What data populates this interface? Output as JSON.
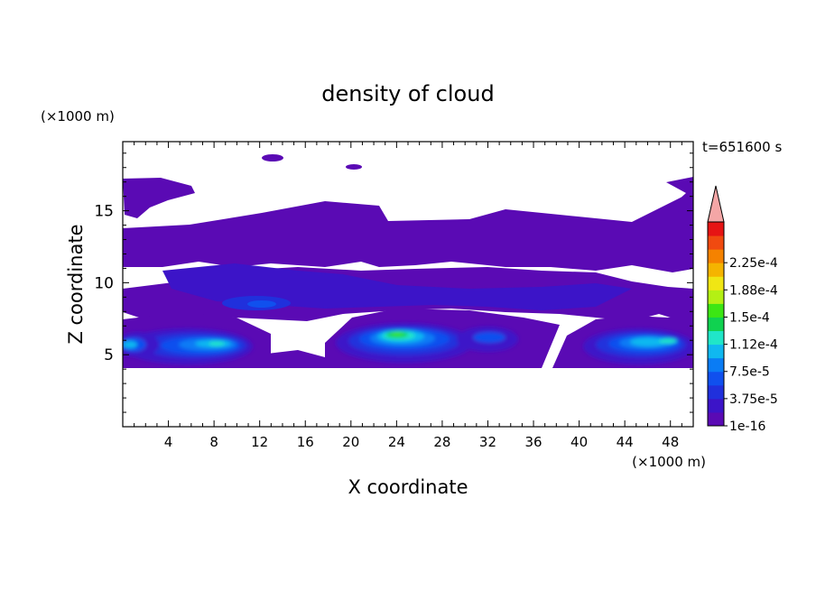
{
  "chart_data": {
    "type": "heatmap",
    "title": "density of cloud",
    "xlabel": "X coordinate",
    "ylabel": "Z coordinate",
    "x_unit": "(×1000 m)",
    "y_unit": "(×1000 m)",
    "time_label": "t=651600 s",
    "xlim": [
      0,
      50
    ],
    "ylim": [
      0,
      19.8
    ],
    "x_ticks": [
      4,
      8,
      12,
      16,
      20,
      24,
      28,
      32,
      36,
      40,
      44,
      48
    ],
    "y_ticks": [
      5,
      10,
      15
    ],
    "colorbar": {
      "labels": [
        "1e-16",
        "3.75e-5",
        "7.5e-5",
        "1.12e-4",
        "1.5e-4",
        "1.88e-4",
        "2.25e-4"
      ],
      "colors": [
        "#5a0ab4",
        "#3c14c8",
        "#2030dc",
        "#1050ee",
        "#0a7cf5",
        "#10b8f0",
        "#20e6c8",
        "#10d250",
        "#3ce614",
        "#b4f014",
        "#f0e614",
        "#f5b400",
        "#f58200",
        "#f04a10",
        "#e61414"
      ],
      "extend_color": "#f4a6a6"
    },
    "regions": [
      {
        "name": "upper-cloud-layer",
        "x": [
          0,
          50
        ],
        "z": [
          10,
          15.5
        ],
        "level": 1
      },
      {
        "name": "top-cloud-patch-left",
        "x": [
          0,
          6.5
        ],
        "z": [
          15,
          17.3
        ],
        "level": 0
      },
      {
        "name": "top-cloud-patch-right",
        "x": [
          45,
          50
        ],
        "z": [
          14.5,
          17.3
        ],
        "level": 0
      },
      {
        "name": "low-cloud-band-left",
        "x": [
          0,
          13
        ],
        "z": [
          4.3,
          7.5
        ],
        "level": 5
      },
      {
        "name": "low-cloud-core-center",
        "x": [
          20,
          29
        ],
        "z": [
          4.3,
          7.5
        ],
        "level": 8
      },
      {
        "name": "low-cloud-band-right",
        "x": [
          38.5,
          50
        ],
        "z": [
          4.3,
          7.5
        ],
        "level": 5
      }
    ]
  }
}
